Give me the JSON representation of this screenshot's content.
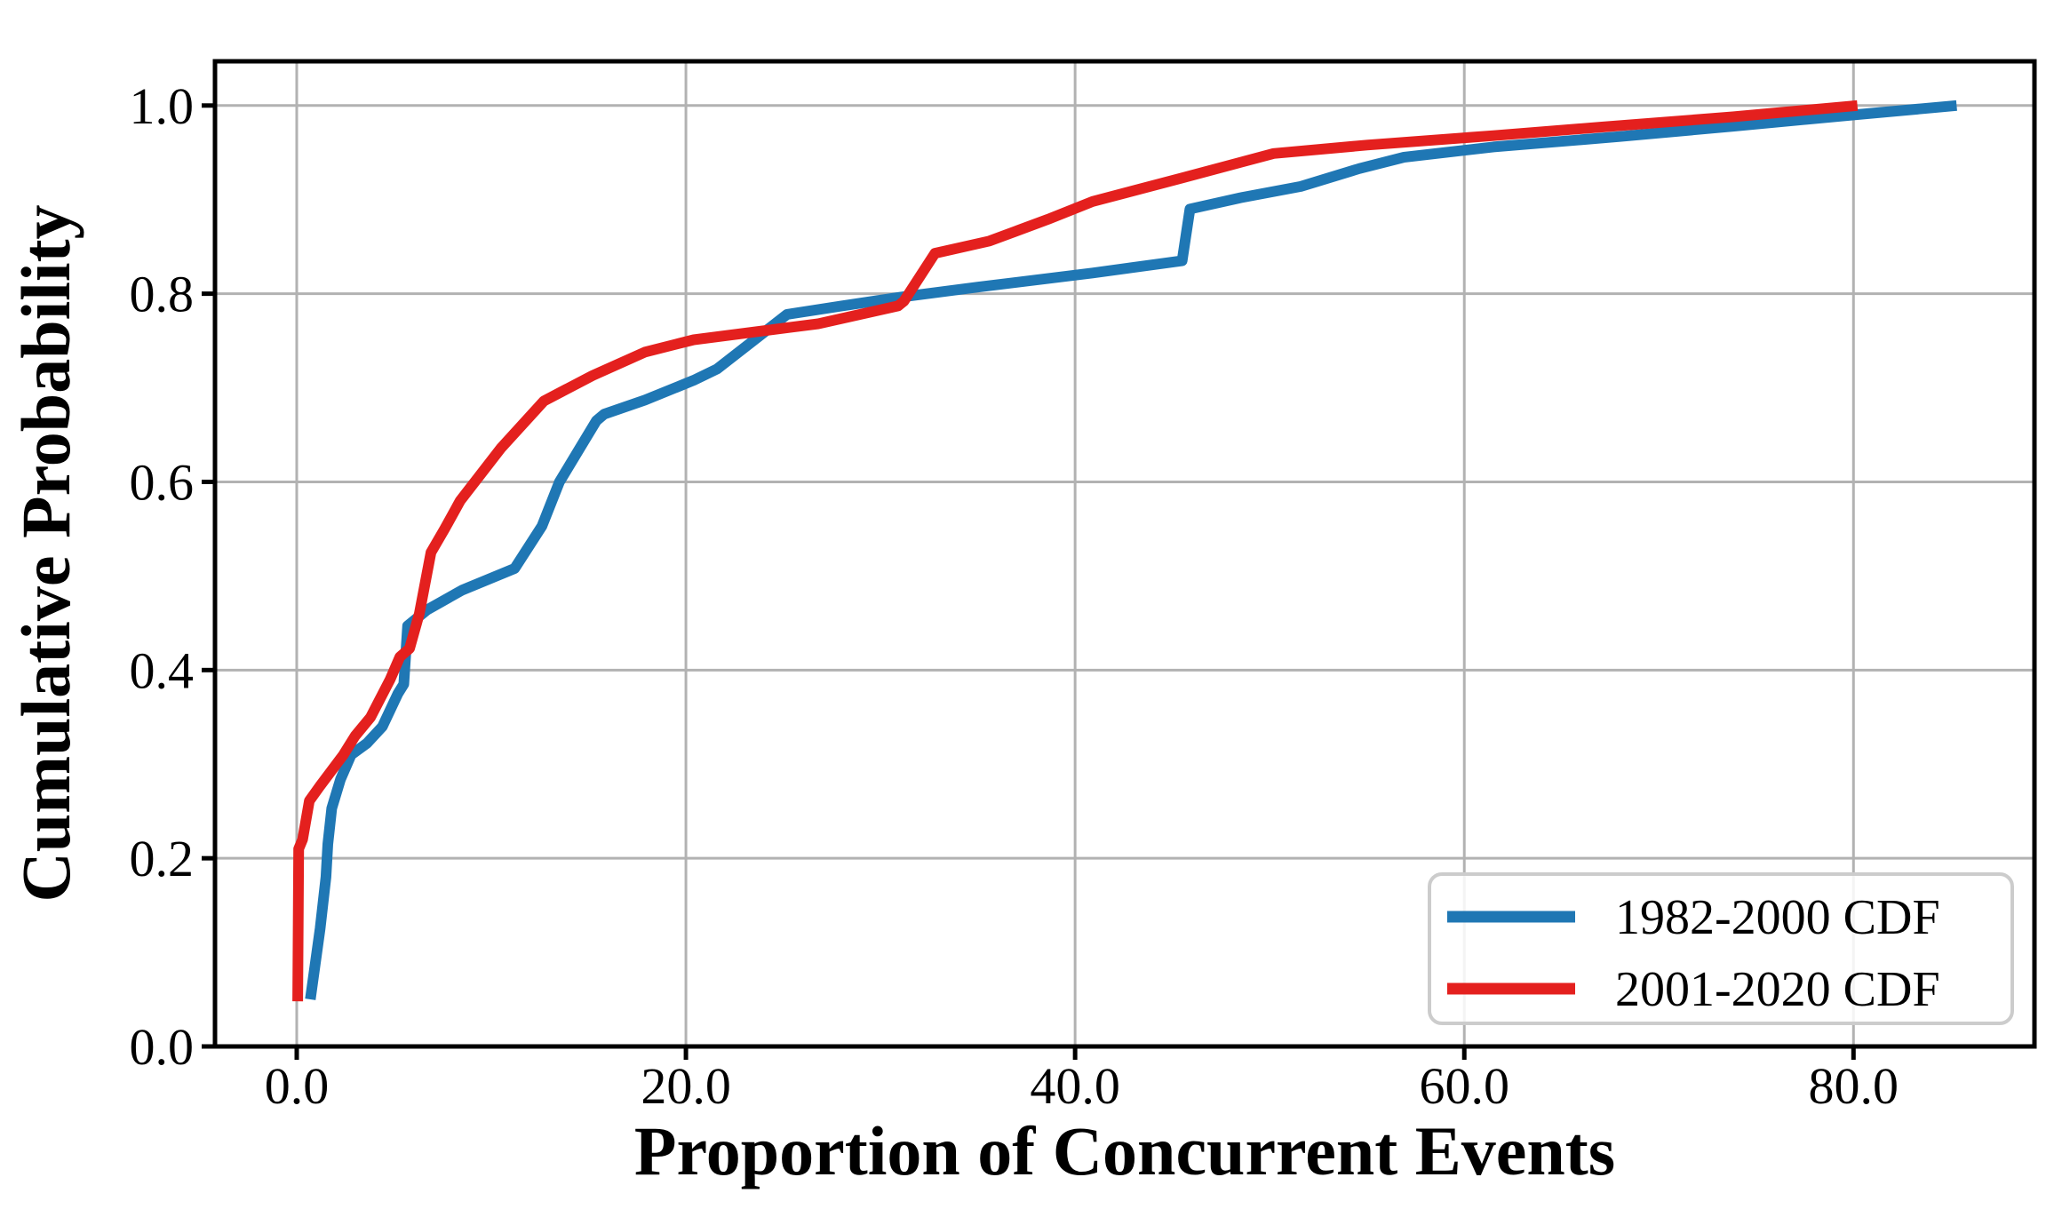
{
  "figure": {
    "background": "#ffffff",
    "spine_color": "#000000",
    "grid_color": "#b2b2b2"
  },
  "chart_data": {
    "type": "line",
    "title": "",
    "xlabel": "Proportion of Concurrent Events",
    "ylabel": "Cumulative Probability",
    "xlim": [
      -4.2,
      89.3
    ],
    "ylim": [
      0,
      1.047
    ],
    "grid": true,
    "legend_position": "lower right",
    "x_ticks": {
      "values": [
        0,
        20,
        40,
        60,
        80
      ],
      "labels": [
        "0.0",
        "20.0",
        "40.0",
        "60.0",
        "80.0"
      ]
    },
    "y_ticks": {
      "values": [
        0,
        0.2,
        0.4,
        0.6,
        0.8,
        1.0
      ],
      "labels": [
        "0.0",
        "0.2",
        "0.4",
        "0.6",
        "0.8",
        "1.0"
      ]
    },
    "series": [
      {
        "name": "1982-2000 CDF",
        "color": "#1f77b4",
        "points": [
          [
            0.7,
            0.05
          ],
          [
            1.2,
            0.125
          ],
          [
            1.5,
            0.18
          ],
          [
            1.6,
            0.215
          ],
          [
            1.8,
            0.253
          ],
          [
            2.25,
            0.284
          ],
          [
            2.8,
            0.31
          ],
          [
            3.6,
            0.322
          ],
          [
            4.4,
            0.34
          ],
          [
            5.2,
            0.375
          ],
          [
            5.5,
            0.385
          ],
          [
            5.7,
            0.447
          ],
          [
            6.7,
            0.464
          ],
          [
            8.5,
            0.485
          ],
          [
            11.2,
            0.508
          ],
          [
            12.6,
            0.553
          ],
          [
            13.5,
            0.6
          ],
          [
            15.4,
            0.665
          ],
          [
            15.8,
            0.672
          ],
          [
            17.9,
            0.687
          ],
          [
            20.4,
            0.708
          ],
          [
            21.6,
            0.72
          ],
          [
            25.2,
            0.778
          ],
          [
            28.0,
            0.787
          ],
          [
            30.9,
            0.796
          ],
          [
            35.0,
            0.807
          ],
          [
            40.9,
            0.822
          ],
          [
            45.5,
            0.835
          ],
          [
            45.9,
            0.89
          ],
          [
            48.5,
            0.902
          ],
          [
            51.6,
            0.914
          ],
          [
            54.6,
            0.933
          ],
          [
            56.9,
            0.945
          ],
          [
            61.5,
            0.956
          ],
          [
            68.0,
            0.967
          ],
          [
            73.8,
            0.978
          ],
          [
            80.0,
            0.99
          ],
          [
            85.3,
            1.0
          ]
        ]
      },
      {
        "name": "2001-2020 CDF",
        "color": "#e4201e",
        "points": [
          [
            0.05,
            0.048
          ],
          [
            0.1,
            0.21
          ],
          [
            0.3,
            0.22
          ],
          [
            0.65,
            0.261
          ],
          [
            1.2,
            0.277
          ],
          [
            2.4,
            0.31
          ],
          [
            3.0,
            0.33
          ],
          [
            3.8,
            0.35
          ],
          [
            4.8,
            0.39
          ],
          [
            5.3,
            0.414
          ],
          [
            5.8,
            0.423
          ],
          [
            6.3,
            0.46
          ],
          [
            6.9,
            0.525
          ],
          [
            7.6,
            0.55
          ],
          [
            8.4,
            0.58
          ],
          [
            10.5,
            0.636
          ],
          [
            12.7,
            0.686
          ],
          [
            15.2,
            0.713
          ],
          [
            17.9,
            0.738
          ],
          [
            20.4,
            0.751
          ],
          [
            26.8,
            0.768
          ],
          [
            30.9,
            0.787
          ],
          [
            31.2,
            0.792
          ],
          [
            32.8,
            0.843
          ],
          [
            35.6,
            0.856
          ],
          [
            38.6,
            0.879
          ],
          [
            40.9,
            0.898
          ],
          [
            45.5,
            0.923
          ],
          [
            50.2,
            0.949
          ],
          [
            55.0,
            0.958
          ],
          [
            61.5,
            0.968
          ],
          [
            67.0,
            0.977
          ],
          [
            73.8,
            0.988
          ],
          [
            80.2,
            1.0
          ]
        ]
      }
    ]
  }
}
